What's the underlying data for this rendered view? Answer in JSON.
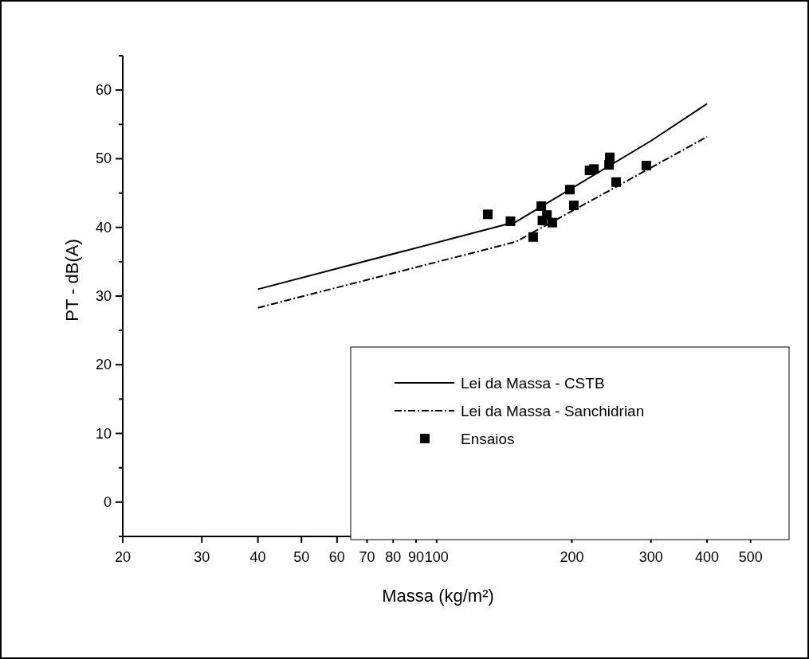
{
  "chart_data": {
    "type": "line",
    "xlabel": "Massa (kg/m²)",
    "ylabel": "PT - dB(A)",
    "log": "x",
    "xlim": [
      20,
      550
    ],
    "ylim": [
      -5,
      65
    ],
    "xticks": [
      20,
      30,
      40,
      50,
      60,
      70,
      80,
      90,
      100,
      200,
      300,
      400,
      500
    ],
    "yticks": [
      {
        "value": -5,
        "label": null
      },
      0,
      {
        "value": 5,
        "label": null
      },
      10,
      {
        "value": 15,
        "label": null
      },
      20,
      {
        "value": 25,
        "label": null
      },
      30,
      {
        "value": 35,
        "label": null
      },
      40,
      {
        "value": 45,
        "label": null
      },
      50,
      {
        "value": 55,
        "label": null
      },
      60,
      {
        "value": 65,
        "label": null
      }
    ],
    "grid": false,
    "legend": "bottom right",
    "series": [
      {
        "name": "Lei da Massa - CSTB",
        "color": "#000000",
        "line_style": "solid",
        "marker": "none",
        "x": [
          40,
          150,
          300,
          400
        ],
        "values": [
          31.0,
          40.8,
          52.6,
          58.0
        ]
      },
      {
        "name": "Lei da Massa - Sanchidrian",
        "color": "#000000",
        "line_style": "dashed",
        "marker": "none",
        "x": [
          40,
          150,
          240,
          400
        ],
        "values": [
          28.3,
          37.9,
          45.2,
          53.2
        ]
      },
      {
        "name": "Ensaios",
        "type": "scatter",
        "color": "#000000",
        "marker": "square",
        "x": [
          130,
          146,
          171,
          172,
          176,
          181,
          164,
          198,
          202,
          219,
          224,
          243,
          242,
          251,
          293
        ],
        "values": [
          41.9,
          40.9,
          43.1,
          41.0,
          41.8,
          40.7,
          38.6,
          45.5,
          43.2,
          48.3,
          48.5,
          50.2,
          49.1,
          46.6,
          49.0
        ]
      }
    ]
  }
}
